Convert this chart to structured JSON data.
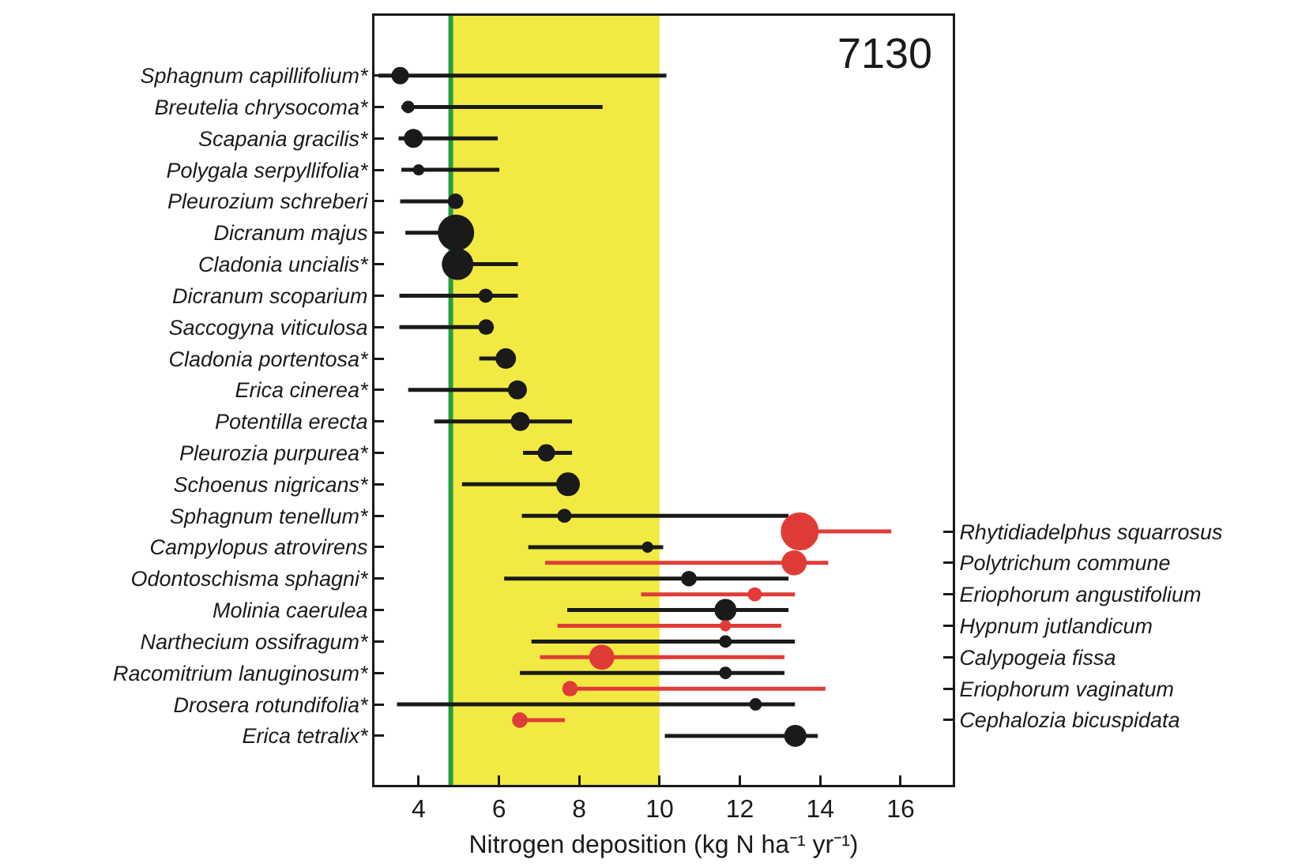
{
  "chart_data": {
    "type": "bubble",
    "orientation": "horizontal",
    "xlabel": "Nitrogen deposition (kg N ha⁻¹ yr⁻¹)",
    "annotations": [
      "7130"
    ],
    "categories": [
      "Sphagnum capillifolium*",
      null,
      "Breutelia chrysocoma*",
      null,
      "Scapania gracilis*",
      null,
      "Polygala serpyllifolia*",
      null,
      "Pleurozium schreberi",
      null,
      "Dicranum majus",
      null,
      "Cladonia uncialis*",
      null,
      "Dicranum scoparium",
      null,
      "Saccogyna viticulosa",
      null,
      "Cladonia portentosa*",
      null,
      "Erica cinerea*",
      null,
      "Potentilla erecta",
      null,
      "Pleurozia purpurea*",
      null,
      "Schoenus nigricans*",
      null,
      "Sphagnum tenellum*",
      null,
      "Campylopus atrovirens",
      null,
      "Odontoschisma sphagni*",
      null,
      "Molinia caerulea",
      null,
      "Narthecium ossifragum*",
      null,
      "Racomitrium lanuginosum*",
      null,
      "Drosera rotundifolia*",
      null,
      "Erica tetralix*"
    ],
    "y2_categories": [
      null,
      null,
      null,
      null,
      null,
      null,
      null,
      null,
      null,
      null,
      null,
      null,
      null,
      null,
      null,
      null,
      null,
      null,
      null,
      null,
      null,
      null,
      null,
      null,
      null,
      null,
      null,
      null,
      null,
      "Rhytidiadelphus squarrosus",
      null,
      "Polytrichum commune",
      null,
      "Eriophorum angustifolium",
      null,
      "Hypnum jutlandicum",
      null,
      "Calypogeia fissa",
      null,
      "Eriophorum vaginatum",
      null,
      "Cephalozia bicuspidata",
      null
    ],
    "series": [
      {
        "color": "#1a1a1a",
        "values": [
          3.54,
          null,
          3.74,
          null,
          3.87,
          null,
          4.0,
          null,
          4.92,
          null,
          4.93,
          null,
          4.97,
          null,
          5.67,
          null,
          5.68,
          null,
          6.17,
          null,
          6.46,
          null,
          6.53,
          null,
          7.18,
          null,
          7.72,
          null,
          7.63,
          null,
          9.7,
          null,
          10.73,
          null,
          11.64,
          null,
          11.64,
          null,
          11.64,
          null,
          12.39,
          null,
          13.38
        ],
        "errors": [
          [
            3.0,
            10.17
          ],
          null,
          [
            3.57,
            8.58
          ],
          null,
          [
            3.5,
            5.97
          ],
          null,
          [
            3.57,
            6.01
          ],
          null,
          [
            3.54,
            4.92
          ],
          null,
          [
            3.67,
            4.93
          ],
          null,
          [
            4.97,
            6.47
          ],
          null,
          [
            3.52,
            6.47
          ],
          null,
          [
            3.52,
            5.68
          ],
          null,
          [
            5.51,
            6.17
          ],
          null,
          [
            3.74,
            6.46
          ],
          null,
          [
            4.39,
            7.82
          ],
          null,
          [
            6.6,
            7.82
          ],
          null,
          [
            5.08,
            7.72
          ],
          null,
          [
            6.57,
            13.21
          ],
          null,
          [
            6.73,
            10.09
          ],
          null,
          [
            6.13,
            13.21
          ],
          null,
          [
            7.7,
            13.21
          ],
          null,
          [
            6.81,
            13.37
          ],
          null,
          [
            6.52,
            13.11
          ],
          null,
          [
            3.46,
            13.37
          ],
          null,
          [
            10.13,
            13.94
          ]
        ],
        "sizes": [
          0.21,
          null,
          0.11,
          null,
          0.25,
          null,
          0.09,
          null,
          0.17,
          null,
          0.92,
          null,
          0.69,
          null,
          0.14,
          null,
          0.17,
          null,
          0.29,
          null,
          0.25,
          null,
          0.25,
          null,
          0.21,
          null,
          0.39,
          null,
          0.14,
          null,
          0.09,
          null,
          0.17,
          null,
          0.34,
          null,
          0.11,
          null,
          0.11,
          null,
          0.11,
          null,
          0.34
        ]
      },
      {
        "color": "#e03c37",
        "axis": "y2",
        "values": [
          null,
          null,
          null,
          null,
          null,
          null,
          null,
          null,
          null,
          null,
          null,
          null,
          null,
          null,
          null,
          null,
          null,
          null,
          null,
          null,
          null,
          null,
          null,
          null,
          null,
          null,
          null,
          null,
          null,
          13.49,
          null,
          13.35,
          null,
          12.37,
          null,
          11.64,
          null,
          8.56,
          null,
          7.77,
          null,
          6.52,
          null
        ],
        "errors": [
          null,
          null,
          null,
          null,
          null,
          null,
          null,
          null,
          null,
          null,
          null,
          null,
          null,
          null,
          null,
          null,
          null,
          null,
          null,
          null,
          null,
          null,
          null,
          null,
          null,
          null,
          null,
          null,
          null,
          [
            13.49,
            15.77
          ],
          null,
          [
            7.15,
            14.2
          ],
          null,
          [
            9.54,
            13.37
          ],
          null,
          [
            7.46,
            13.03
          ],
          null,
          [
            7.02,
            13.11
          ],
          null,
          [
            7.77,
            14.13
          ],
          null,
          [
            6.52,
            7.64
          ],
          null
        ],
        "sizes": [
          null,
          null,
          null,
          null,
          null,
          null,
          null,
          null,
          null,
          null,
          null,
          null,
          null,
          null,
          null,
          null,
          null,
          null,
          null,
          null,
          null,
          null,
          null,
          null,
          null,
          null,
          null,
          null,
          null,
          1,
          null,
          0.44,
          null,
          0.14,
          null,
          0.09,
          null,
          0.44,
          null,
          0.17,
          null,
          0.17,
          null
        ]
      }
    ],
    "xlim": [
      2.9,
      17.3
    ],
    "xticks": [
      4,
      6,
      8,
      10,
      12,
      14,
      16
    ],
    "ref_lines": [
      {
        "axis": "x",
        "value": 4.8,
        "color": "#23a040"
      }
    ],
    "bands": [
      {
        "axis": "x",
        "from": 4.8,
        "to": 10,
        "color": "#f2ea42"
      }
    ],
    "grid": false,
    "marker": "circle"
  }
}
